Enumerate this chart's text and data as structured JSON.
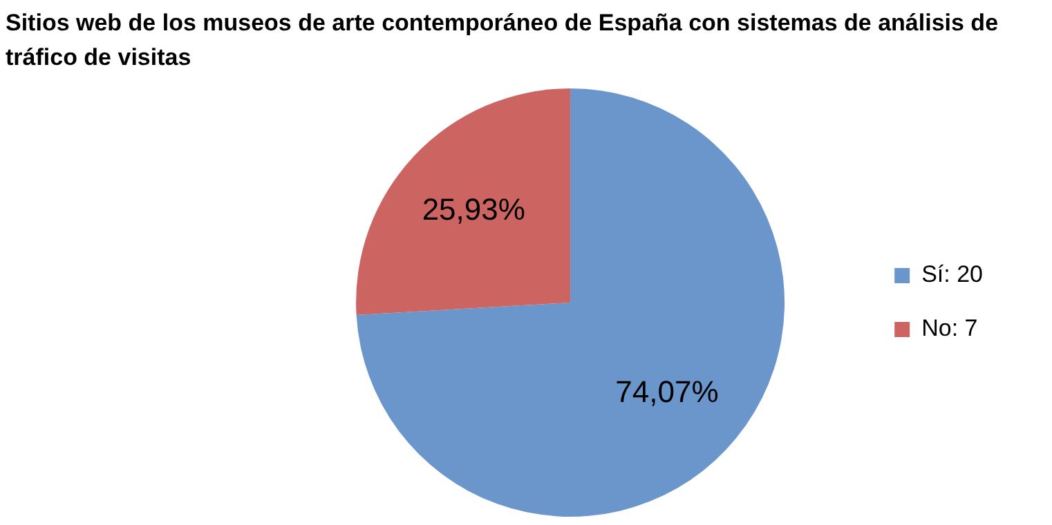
{
  "chart_data": {
    "type": "pie",
    "title": "Sitios web de los museos de arte contemporáneo de España con sistemas de análisis de tráfico de visitas",
    "categories": [
      "Sí: 20",
      "No: 7"
    ],
    "values": [
      74.07,
      25.93
    ],
    "value_labels": [
      "74,07%",
      "25,93%"
    ],
    "colors": [
      "#6a96cc",
      "#cc6561"
    ],
    "legend": "right"
  }
}
